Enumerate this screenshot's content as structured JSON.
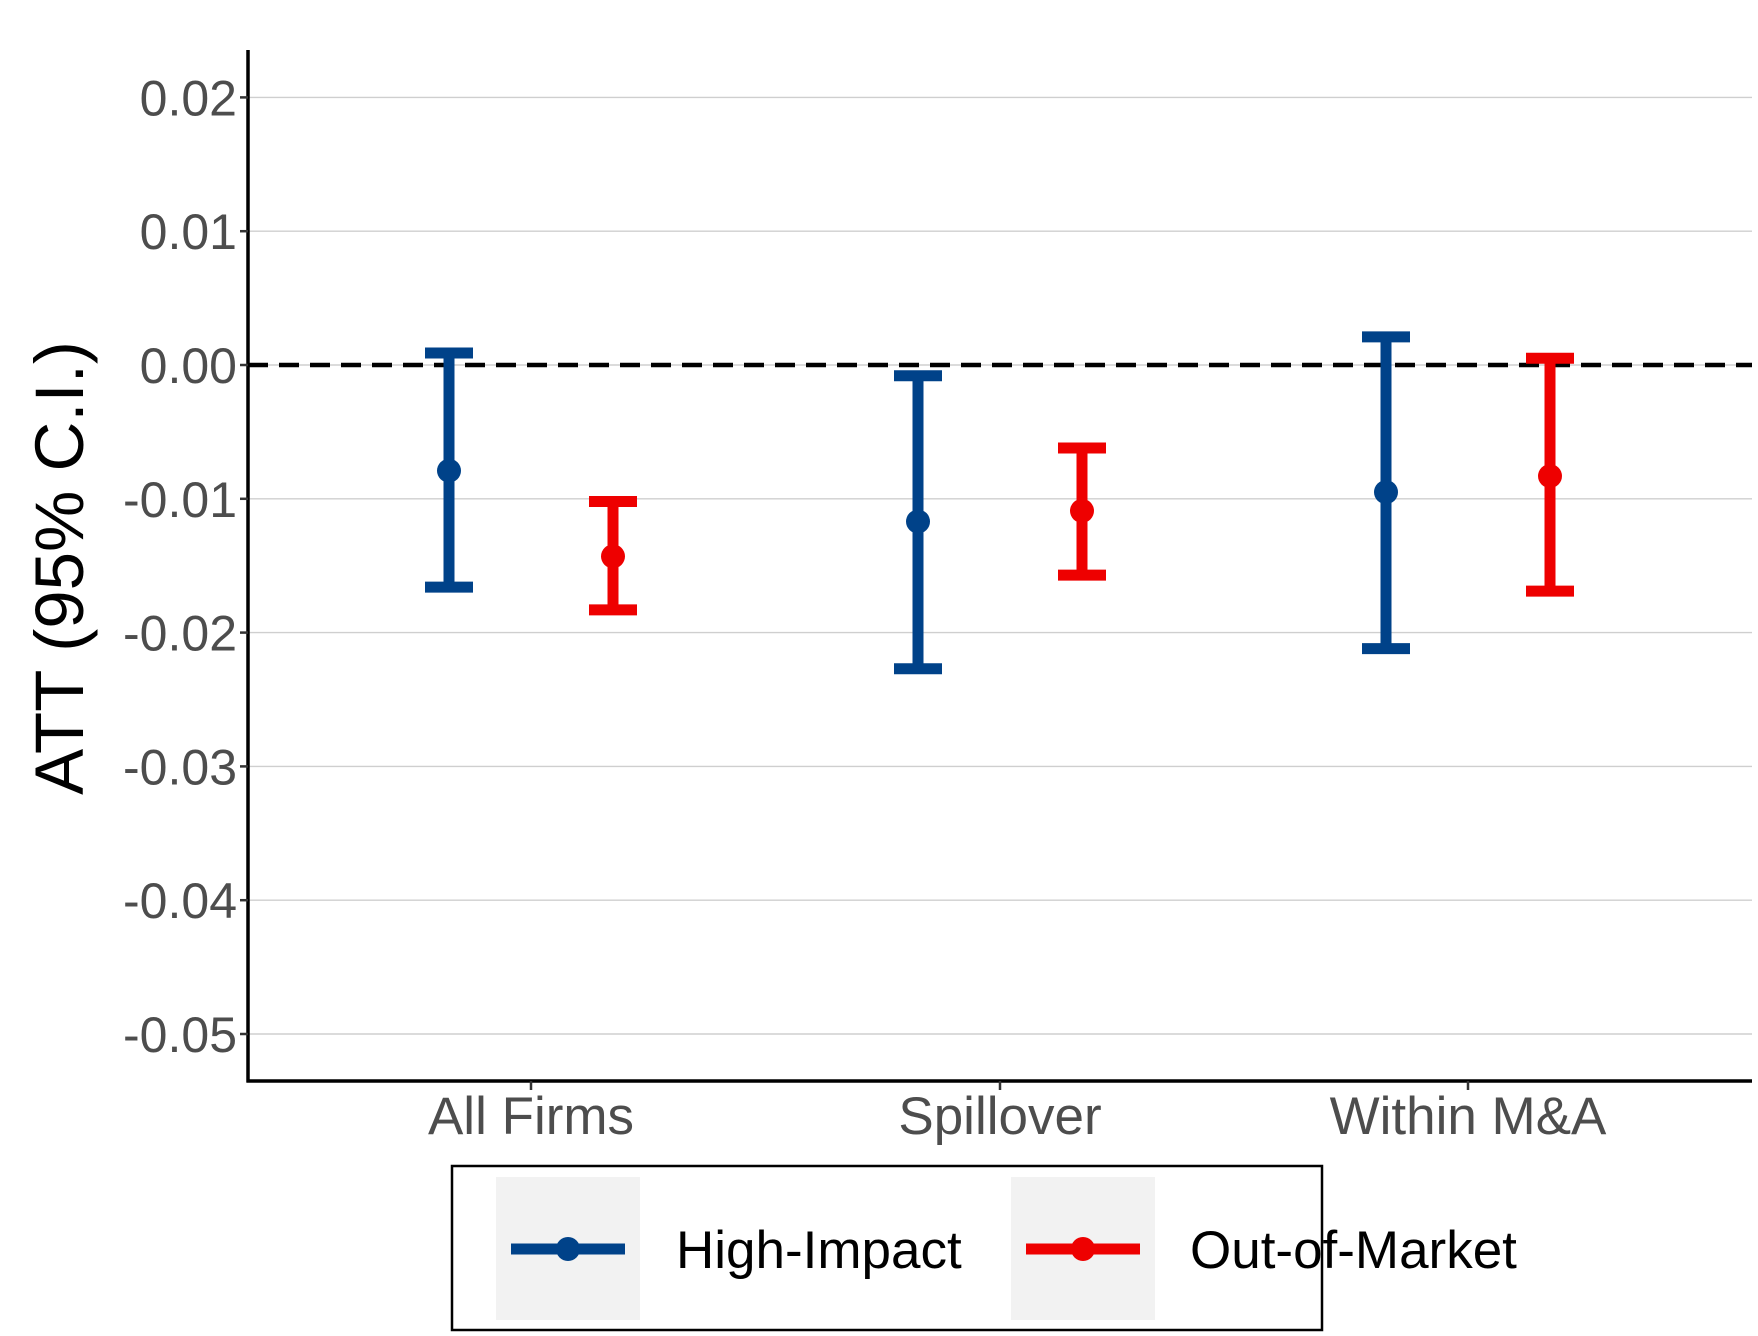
{
  "chart_data": {
    "type": "errorbar",
    "title": "",
    "xlabel": "",
    "ylabel": "ATT (95% C.I.)",
    "categories": [
      "All Firms",
      "Spillover",
      "Within M&A"
    ],
    "ylim": [
      -0.0535,
      0.0235
    ],
    "yticks": [
      -0.05,
      -0.04,
      -0.03,
      -0.02,
      -0.01,
      0.0,
      0.01,
      0.02
    ],
    "ytick_labels": [
      "-0.05",
      "-0.04",
      "-0.03",
      "-0.02",
      "-0.01",
      "0.00",
      "0.01",
      "0.02"
    ],
    "grid": "horizontal",
    "reference_line": {
      "y": 0.0,
      "style": "dashed",
      "color": "#000000"
    },
    "legend_position": "bottom",
    "series": [
      {
        "name": "High-Impact",
        "color": "#004289",
        "estimate": [
          -0.0079,
          -0.0117,
          -0.0095
        ],
        "lower": [
          -0.0166,
          -0.0227,
          -0.0212
        ],
        "upper": [
          0.0009,
          -0.0008,
          0.0021
        ]
      },
      {
        "name": "Out-of-Market",
        "color": "#ee0000",
        "estimate": [
          -0.0143,
          -0.0109,
          -0.0083
        ],
        "lower": [
          -0.0183,
          -0.0157,
          -0.0169
        ],
        "upper": [
          -0.0102,
          -0.0062,
          0.0005
        ]
      }
    ]
  }
}
